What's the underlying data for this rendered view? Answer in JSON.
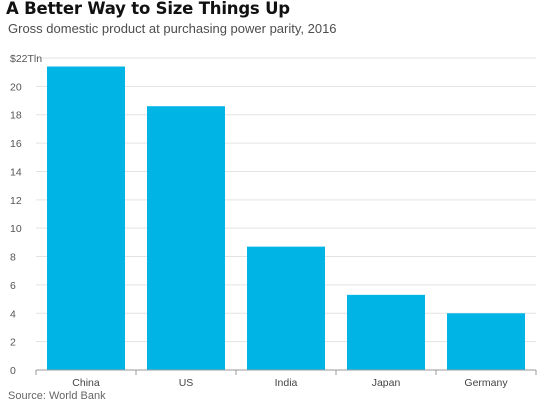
{
  "title": "A Better Way to Size Things Up",
  "subtitle": "Gross domestic product at purchasing power parity, 2016",
  "source": "Source: World Bank",
  "colors": {
    "bar": "#00b5e6",
    "grid": "#e3e3e3",
    "axis": "#999999"
  },
  "chart_data": {
    "type": "bar",
    "title": "A Better Way to Size Things Up",
    "subtitle": "Gross domestic product at purchasing power parity, 2016",
    "xlabel": "",
    "ylabel": "",
    "categories": [
      "China",
      "US",
      "India",
      "Japan",
      "Germany"
    ],
    "values": [
      21.4,
      18.6,
      8.7,
      5.3,
      4.0
    ],
    "ylim": [
      0,
      22
    ],
    "yticks": [
      0,
      2,
      4,
      6,
      8,
      10,
      12,
      14,
      16,
      18,
      20,
      22
    ],
    "ytick_labels": [
      "0",
      "2",
      "4",
      "6",
      "8",
      "10",
      "12",
      "14",
      "16",
      "18",
      "20",
      "$22Tln"
    ],
    "grid": true,
    "legend": "none"
  }
}
